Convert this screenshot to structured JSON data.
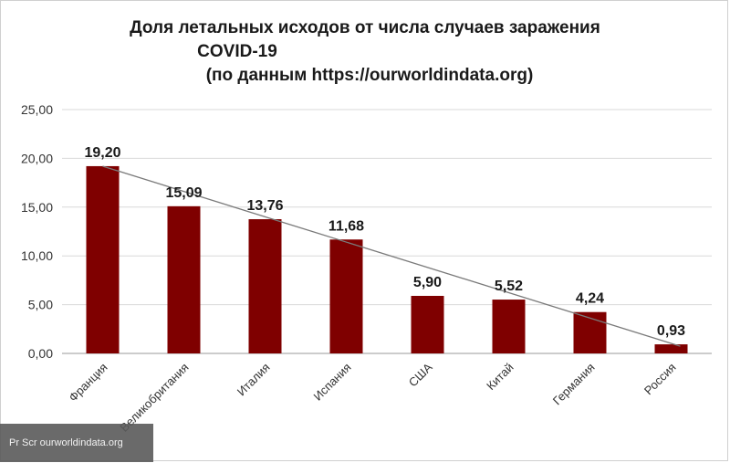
{
  "chart_data": {
    "type": "bar",
    "title_lines": [
      "Доля летальных исходов от числа случаев заражения",
      "COVID-19",
      "(по данным https://ourworldindata.org)"
    ],
    "categories": [
      "Франция",
      "Великобритания",
      "Италия",
      "Испания",
      "США",
      "Китай",
      "Германия",
      "Россия"
    ],
    "values": [
      19.2,
      15.09,
      13.76,
      11.68,
      5.9,
      5.52,
      4.24,
      0.93
    ],
    "value_labels": [
      "19,20",
      "15,09",
      "13,76",
      "11,68",
      "5,90",
      "5,52",
      "4,24",
      "0,93"
    ],
    "yticks": [
      "0,00",
      "5,00",
      "10,00",
      "15,00",
      "20,00",
      "25,00"
    ],
    "ytick_values": [
      0,
      5,
      10,
      15,
      20,
      25
    ],
    "ylim": [
      0,
      25
    ],
    "trendline": true,
    "bar_color": "#7f0000",
    "trend_color": "#7a7a7a",
    "grid": true
  },
  "watermark": "Pr Scr ourworldindata.org"
}
